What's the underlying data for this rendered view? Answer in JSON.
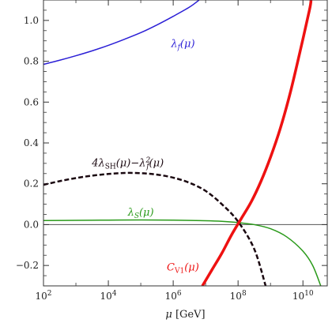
{
  "chart_data": {
    "type": "line",
    "title": "",
    "xlabel": "μ [GeV]",
    "ylabel": "",
    "xscale": "log",
    "xlim_log10": [
      2,
      10.75
    ],
    "ylim": [
      -0.3,
      1.1
    ],
    "x_ticks": [
      {
        "log10": 2,
        "base": "10",
        "exp": "2"
      },
      {
        "log10": 4,
        "base": "10",
        "exp": "4"
      },
      {
        "log10": 6,
        "base": "10",
        "exp": "6"
      },
      {
        "log10": 8,
        "base": "10",
        "exp": "8"
      },
      {
        "log10": 10,
        "base": "10",
        "exp": "10"
      }
    ],
    "y_ticks": [
      {
        "value": 1.0,
        "label": "1.0"
      },
      {
        "value": 0.8,
        "label": "0.8"
      },
      {
        "value": 0.6,
        "label": "0.6"
      },
      {
        "value": 0.4,
        "label": "0.4"
      },
      {
        "value": 0.2,
        "label": "0.2"
      },
      {
        "value": 0.0,
        "label": "0.0"
      },
      {
        "value": -0.2,
        "label": "−0.2"
      }
    ],
    "zero_line": true,
    "series": [
      {
        "name": "λ_f(μ)",
        "color": "#2b1fd6",
        "style": "solid",
        "width": 1.5,
        "label_pos": {
          "log10": 6.3,
          "y": 0.87
        },
        "points": [
          [
            2.0,
            0.785
          ],
          [
            2.5,
            0.805
          ],
          [
            3.0,
            0.827
          ],
          [
            3.5,
            0.851
          ],
          [
            4.0,
            0.878
          ],
          [
            4.5,
            0.908
          ],
          [
            5.0,
            0.94
          ],
          [
            5.5,
            0.978
          ],
          [
            6.0,
            1.02
          ],
          [
            6.5,
            1.065
          ],
          [
            6.8,
            1.1
          ]
        ]
      },
      {
        "name": "4λ_SH(μ)−λ_f²(μ)",
        "color": "#1a0810",
        "style": "dashed",
        "width": 2.5,
        "label_pos": {
          "log10": 4.6,
          "y": 0.285
        },
        "points": [
          [
            2.0,
            0.195
          ],
          [
            2.5,
            0.213
          ],
          [
            3.0,
            0.228
          ],
          [
            3.5,
            0.24
          ],
          [
            4.0,
            0.248
          ],
          [
            4.5,
            0.253
          ],
          [
            5.0,
            0.252
          ],
          [
            5.5,
            0.245
          ],
          [
            6.0,
            0.23
          ],
          [
            6.5,
            0.205
          ],
          [
            7.0,
            0.165
          ],
          [
            7.5,
            0.1
          ],
          [
            8.0,
            0.015
          ],
          [
            8.5,
            -0.12
          ],
          [
            8.85,
            -0.3
          ]
        ]
      },
      {
        "name": "λ_S(μ)",
        "color": "#2a9a1a",
        "style": "solid",
        "width": 1.5,
        "label_pos": {
          "log10": 5.0,
          "y": 0.045
        },
        "points": [
          [
            2.0,
            0.02
          ],
          [
            3.0,
            0.021
          ],
          [
            4.0,
            0.022
          ],
          [
            5.0,
            0.023
          ],
          [
            6.0,
            0.022
          ],
          [
            7.0,
            0.019
          ],
          [
            7.5,
            0.016
          ],
          [
            8.0,
            0.01
          ],
          [
            8.5,
            0.0
          ],
          [
            9.0,
            -0.02
          ],
          [
            9.5,
            -0.06
          ],
          [
            10.0,
            -0.13
          ],
          [
            10.3,
            -0.2
          ],
          [
            10.55,
            -0.3
          ]
        ]
      },
      {
        "name": "C_V1(μ)",
        "color": "#ee1111",
        "style": "solid",
        "width": 3.5,
        "label_pos": {
          "log10": 6.3,
          "y": -0.225
        },
        "points": [
          [
            6.9,
            -0.3
          ],
          [
            7.2,
            -0.22
          ],
          [
            7.5,
            -0.14
          ],
          [
            7.8,
            -0.05
          ],
          [
            8.1,
            0.03
          ],
          [
            8.4,
            0.11
          ],
          [
            8.7,
            0.21
          ],
          [
            9.0,
            0.33
          ],
          [
            9.3,
            0.47
          ],
          [
            9.6,
            0.64
          ],
          [
            9.9,
            0.84
          ],
          [
            10.2,
            1.05
          ],
          [
            10.25,
            1.1
          ]
        ]
      }
    ]
  }
}
